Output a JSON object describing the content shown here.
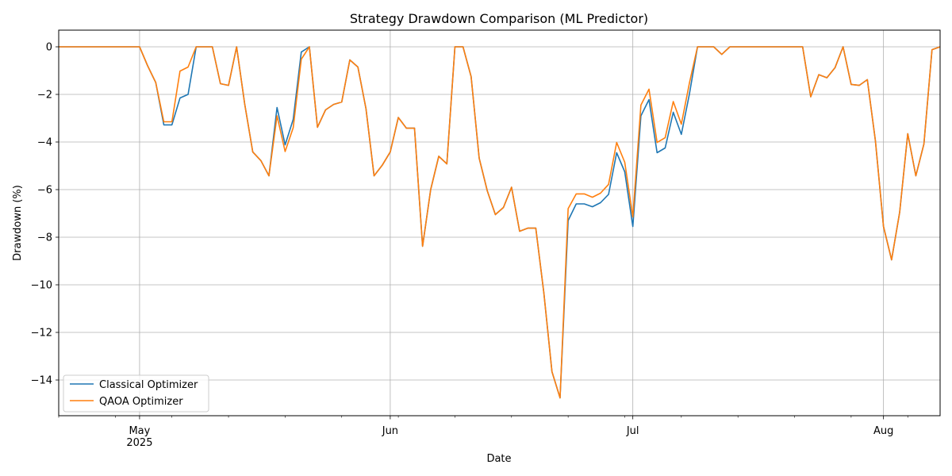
{
  "chart_data": {
    "type": "line",
    "title": "Strategy Drawdown Comparison (ML Predictor)",
    "xlabel": "Date",
    "ylabel": "Drawdown (%)",
    "xlim": [
      "2025-04-21",
      "2025-08-08"
    ],
    "ylim": [
      -15.5,
      0.7
    ],
    "yticks": [
      0,
      -2,
      -4,
      -6,
      -8,
      -10,
      -12,
      -14
    ],
    "xticks": [
      {
        "date": "2025-05-01",
        "label": "May",
        "sublabel": "2025"
      },
      {
        "date": "2025-06-01",
        "label": "Jun",
        "sublabel": ""
      },
      {
        "date": "2025-07-01",
        "label": "Jul",
        "sublabel": ""
      },
      {
        "date": "2025-08-01",
        "label": "Aug",
        "sublabel": ""
      }
    ],
    "grid": true,
    "legend": "lower-left",
    "colors": {
      "classical": "#1f77b4",
      "qaoa": "#ff7f0e"
    },
    "x": [
      "2025-04-21",
      "2025-04-22",
      "2025-04-23",
      "2025-04-24",
      "2025-04-25",
      "2025-04-26",
      "2025-04-27",
      "2025-04-28",
      "2025-04-29",
      "2025-04-30",
      "2025-05-01",
      "2025-05-02",
      "2025-05-03",
      "2025-05-04",
      "2025-05-05",
      "2025-05-06",
      "2025-05-07",
      "2025-05-08",
      "2025-05-09",
      "2025-05-10",
      "2025-05-11",
      "2025-05-12",
      "2025-05-13",
      "2025-05-14",
      "2025-05-15",
      "2025-05-16",
      "2025-05-17",
      "2025-05-18",
      "2025-05-19",
      "2025-05-20",
      "2025-05-21",
      "2025-05-22",
      "2025-05-23",
      "2025-05-24",
      "2025-05-25",
      "2025-05-26",
      "2025-05-27",
      "2025-05-28",
      "2025-05-29",
      "2025-05-30",
      "2025-05-31",
      "2025-06-01",
      "2025-06-02",
      "2025-06-03",
      "2025-06-04",
      "2025-06-05",
      "2025-06-06",
      "2025-06-07",
      "2025-06-08",
      "2025-06-09",
      "2025-06-10",
      "2025-06-11",
      "2025-06-12",
      "2025-06-13",
      "2025-06-14",
      "2025-06-15",
      "2025-06-16",
      "2025-06-17",
      "2025-06-18",
      "2025-06-19",
      "2025-06-20",
      "2025-06-21",
      "2025-06-22",
      "2025-06-23",
      "2025-06-24",
      "2025-06-25",
      "2025-06-26",
      "2025-06-27",
      "2025-06-28",
      "2025-06-29",
      "2025-06-30",
      "2025-07-01",
      "2025-07-02",
      "2025-07-03",
      "2025-07-04",
      "2025-07-05",
      "2025-07-06",
      "2025-07-07",
      "2025-07-08",
      "2025-07-09",
      "2025-07-10",
      "2025-07-11",
      "2025-07-12",
      "2025-07-13",
      "2025-07-14",
      "2025-07-15",
      "2025-07-16",
      "2025-07-17",
      "2025-07-18",
      "2025-07-19",
      "2025-07-20",
      "2025-07-21",
      "2025-07-22",
      "2025-07-23",
      "2025-07-24",
      "2025-07-25",
      "2025-07-26",
      "2025-07-27",
      "2025-07-28",
      "2025-07-29",
      "2025-07-30",
      "2025-07-31",
      "2025-08-01",
      "2025-08-02",
      "2025-08-03",
      "2025-08-04",
      "2025-08-05",
      "2025-08-06",
      "2025-08-07",
      "2025-08-08"
    ],
    "series": [
      {
        "name": "Classical Optimizer",
        "values": [
          0,
          0,
          0,
          0,
          0,
          0,
          0,
          0,
          0,
          0,
          0,
          -0.8,
          -1.5,
          -3.28,
          -3.28,
          -2.15,
          -2.0,
          0,
          0,
          0,
          -1.55,
          -1.62,
          0,
          -2.4,
          -4.42,
          -4.78,
          -5.42,
          -2.55,
          -4.12,
          -3.05,
          -0.22,
          0,
          -3.38,
          -2.65,
          -2.42,
          -2.32,
          -0.55,
          -0.85,
          -2.6,
          -5.42,
          -4.98,
          -4.42,
          -2.97,
          -3.42,
          -3.42,
          -8.38,
          -6.0,
          -4.6,
          -4.92,
          0,
          0,
          -1.25,
          -4.68,
          -6.05,
          -7.05,
          -6.75,
          -5.9,
          -7.75,
          -7.62,
          -7.62,
          -10.35,
          -13.65,
          -14.75,
          -7.3,
          -6.6,
          -6.6,
          -6.72,
          -6.55,
          -6.2,
          -4.45,
          -5.25,
          -7.55,
          -2.9,
          -2.22,
          -4.45,
          -4.25,
          -2.75,
          -3.68,
          -1.98,
          0,
          0,
          0,
          -0.32,
          0,
          0,
          0,
          0,
          0,
          0,
          0,
          0,
          0,
          0,
          -2.1,
          -1.17,
          -1.3,
          -0.88,
          0,
          -1.58,
          -1.62,
          -1.38,
          -3.95,
          -7.55,
          -8.95,
          -6.95,
          -3.65,
          -5.42,
          -4.08,
          -0.12,
          0
        ]
      },
      {
        "name": "QAOA Optimizer",
        "values": [
          0,
          0,
          0,
          0,
          0,
          0,
          0,
          0,
          0,
          0,
          0,
          -0.8,
          -1.5,
          -3.15,
          -3.15,
          -1.02,
          -0.85,
          0,
          0,
          0,
          -1.55,
          -1.62,
          0,
          -2.4,
          -4.42,
          -4.78,
          -5.42,
          -2.9,
          -4.4,
          -3.4,
          -0.52,
          0,
          -3.38,
          -2.65,
          -2.42,
          -2.32,
          -0.55,
          -0.85,
          -2.6,
          -5.42,
          -4.98,
          -4.42,
          -2.97,
          -3.42,
          -3.42,
          -8.38,
          -6.0,
          -4.6,
          -4.92,
          0,
          0,
          -1.25,
          -4.68,
          -6.05,
          -7.05,
          -6.75,
          -5.9,
          -7.75,
          -7.62,
          -7.62,
          -10.35,
          -13.65,
          -14.75,
          -6.8,
          -6.18,
          -6.18,
          -6.32,
          -6.15,
          -5.78,
          -4.02,
          -4.85,
          -7.15,
          -2.45,
          -1.78,
          -4.02,
          -3.82,
          -2.3,
          -3.25,
          -1.52,
          0,
          0,
          0,
          -0.32,
          0,
          0,
          0,
          0,
          0,
          0,
          0,
          0,
          0,
          0,
          -2.1,
          -1.17,
          -1.3,
          -0.88,
          0,
          -1.58,
          -1.62,
          -1.38,
          -3.95,
          -7.55,
          -8.95,
          -6.95,
          -3.65,
          -5.42,
          -4.08,
          -0.12,
          0
        ]
      }
    ]
  }
}
